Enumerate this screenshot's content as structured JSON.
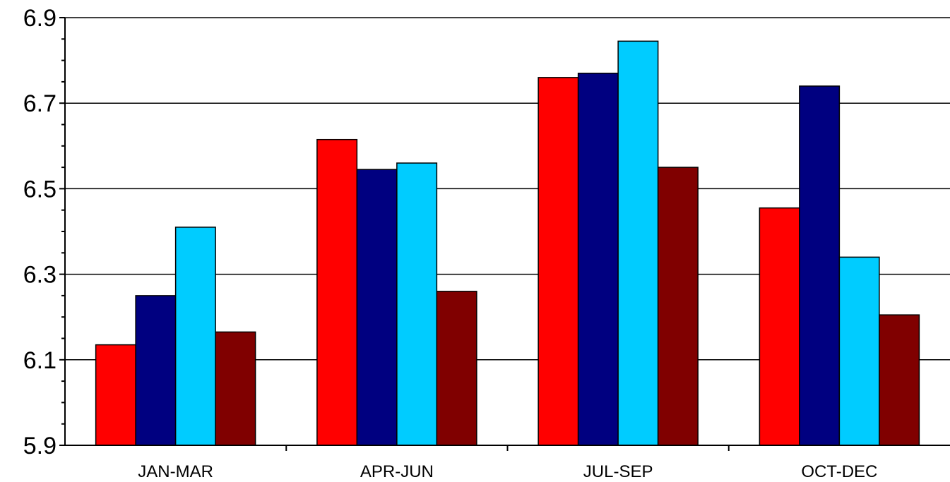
{
  "chart_data": {
    "type": "bar",
    "categories": [
      "JAN-MAR",
      "APR-JUN",
      "JUL-SEP",
      "OCT-DEC"
    ],
    "series": [
      {
        "color": "#ff0000",
        "values": [
          6.135,
          6.615,
          6.76,
          6.455
        ]
      },
      {
        "color": "#000080",
        "values": [
          6.25,
          6.545,
          6.77,
          6.74
        ]
      },
      {
        "color": "#00ccff",
        "values": [
          6.41,
          6.56,
          6.845,
          6.34
        ]
      },
      {
        "color": "#800000",
        "values": [
          6.165,
          6.26,
          6.55,
          6.205
        ]
      }
    ],
    "title": "",
    "xlabel": "",
    "ylabel": "",
    "ylim": [
      5.9,
      6.9
    ],
    "yticks": [
      "5.9",
      "6.1",
      "6.3",
      "6.5",
      "6.7",
      "6.9"
    ],
    "grid": true,
    "legend": "none"
  }
}
